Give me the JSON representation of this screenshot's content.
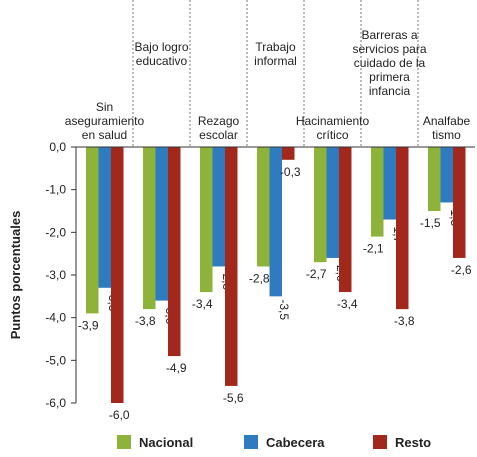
{
  "chart_data": {
    "type": "bar",
    "categories": [
      "Sin\naseguramiento\nen salud",
      "Bajo logro\neducativo",
      "Rezago\nescolar",
      "Trabajo\ninformal",
      "Hacinamiento\ncrítico",
      "Barreras a\nservicios para\ncuidado de la\nprimera\ninfancia",
      "Analfabe\ntismo"
    ],
    "y_label": "Puntos porcentuales",
    "ylim": [
      0,
      -6
    ],
    "yticks": [
      {
        "value": 0,
        "label": "0,0"
      },
      {
        "value": -1,
        "label": "-1,0"
      },
      {
        "value": -2,
        "label": "-2,0"
      },
      {
        "value": -3,
        "label": "-3,0"
      },
      {
        "value": -4,
        "label": "-4,0"
      },
      {
        "value": -5,
        "label": "-5,0"
      },
      {
        "value": -6,
        "label": "-6,0"
      }
    ],
    "series": [
      {
        "name": "Nacional",
        "color": "#8db33a",
        "values": [
          -3.9,
          -3.8,
          -3.4,
          -2.8,
          -2.7,
          -2.1,
          -1.5
        ],
        "value_labels": [
          "-3,9",
          "-3,8",
          "-3,4",
          "-2,8",
          "-2,7",
          "-2,1",
          "-1,5"
        ]
      },
      {
        "name": "Cabecera",
        "color": "#2e7cbf",
        "values": [
          -3.3,
          -3.6,
          -2.8,
          -3.5,
          -2.6,
          -1.7,
          -1.3
        ],
        "value_labels": [
          "-3,3",
          "-3,6",
          "-2,8",
          "-3,5",
          "-2,6",
          "-1,7",
          "-1,3"
        ]
      },
      {
        "name": "Resto",
        "color": "#a3281c",
        "values": [
          -6.0,
          -4.9,
          -5.6,
          -0.3,
          -3.4,
          -3.8,
          -2.6
        ],
        "value_labels": [
          "-6,0",
          "-4,9",
          "-5,6",
          "-0,3",
          "-3,4",
          "-3,8",
          "-2,6"
        ]
      }
    ],
    "legend": "bottom"
  }
}
